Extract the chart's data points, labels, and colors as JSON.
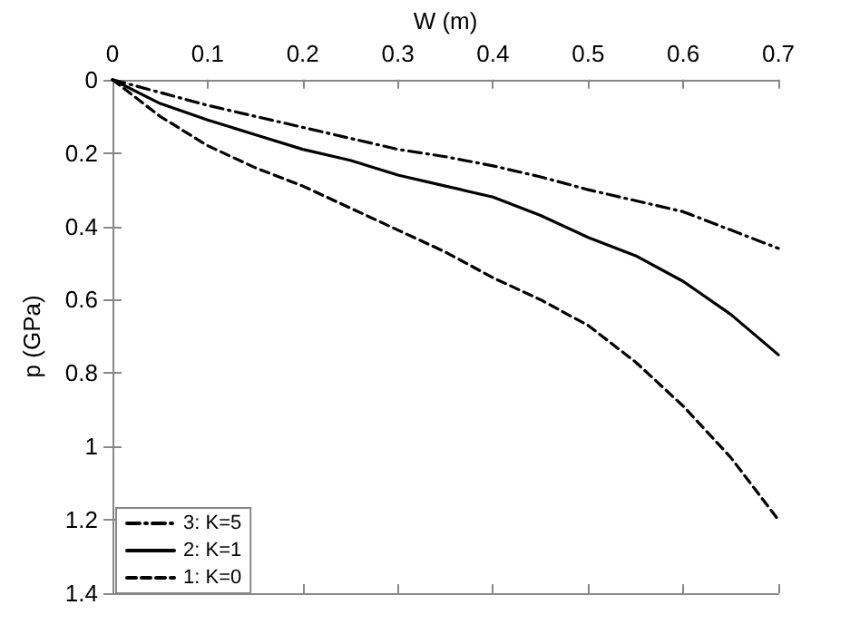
{
  "chart_data": {
    "type": "line",
    "xlabel": "W (m)",
    "ylabel": "p (GPa)",
    "x": [
      0,
      0.05,
      0.1,
      0.15,
      0.2,
      0.25,
      0.3,
      0.35,
      0.4,
      0.45,
      0.5,
      0.55,
      0.6,
      0.65,
      0.7
    ],
    "series": [
      {
        "name": "3: K=5",
        "color": "#000000",
        "line_style": "dashdot",
        "values": [
          0,
          0.035,
          0.07,
          0.1,
          0.13,
          0.16,
          0.19,
          0.21,
          0.235,
          0.265,
          0.3,
          0.33,
          0.36,
          0.41,
          0.46
        ]
      },
      {
        "name": "2: K=1",
        "color": "#000000",
        "line_style": "solid",
        "values": [
          0,
          0.065,
          0.11,
          0.15,
          0.19,
          0.22,
          0.26,
          0.29,
          0.32,
          0.37,
          0.43,
          0.48,
          0.55,
          0.64,
          0.75
        ]
      },
      {
        "name": "1: K=0",
        "color": "#000000",
        "line_style": "dashed",
        "values": [
          0,
          0.1,
          0.18,
          0.24,
          0.29,
          0.35,
          0.41,
          0.47,
          0.54,
          0.6,
          0.67,
          0.77,
          0.89,
          1.03,
          1.2
        ]
      }
    ],
    "xlim": [
      0,
      0.7
    ],
    "xticks": [
      0,
      0.1,
      0.2,
      0.3,
      0.4,
      0.5,
      0.6,
      0.7
    ],
    "ylim": [
      1.4,
      0
    ],
    "yticks": [
      0,
      0.2,
      0.4,
      0.6,
      0.8,
      1,
      1.2,
      1.4
    ],
    "grid": false,
    "legend": "bottom left",
    "marker": "none"
  }
}
